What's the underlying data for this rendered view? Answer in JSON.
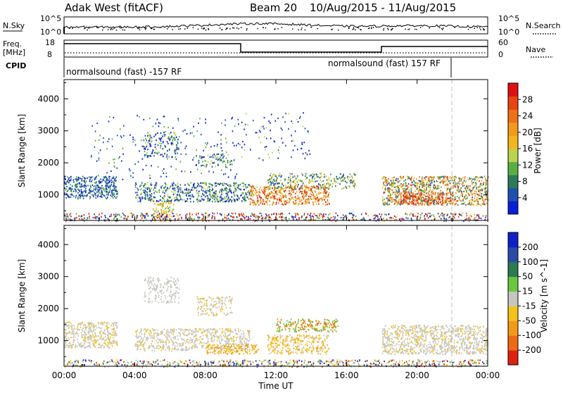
{
  "header": {
    "radar": "Adak West (fitACF)",
    "beam": "Beam 20",
    "dates": "10/Aug/2015 - 11/Aug/2015"
  },
  "top_panels": {
    "nsky_label": "N.Sky",
    "nsky_ticks": [
      "10^5",
      "10^0"
    ],
    "nsearch_label": "N.Search",
    "nsearch_ticks": [
      "10^5",
      "10^0"
    ],
    "freq_label_1": "Freq.",
    "freq_label_2": "[MHz]",
    "freq_ticks": [
      "18",
      "8"
    ],
    "nave_label": "Nave",
    "nave_ticks": [
      "60",
      "0"
    ],
    "cpid_label": "CPID",
    "cpid_modes": [
      "normalsound (fast) -157 RF",
      "normalsound (fast) 157 RF"
    ]
  },
  "chart_data": [
    {
      "type": "heatmap",
      "title": "",
      "ylabel": "Slant Range [km]",
      "xlabel": "",
      "x_ticks": [
        "00:00",
        "04:00",
        "08:00",
        "12:00",
        "16:00",
        "20:00",
        "00:00"
      ],
      "y_ticks": [
        1000,
        2000,
        3000,
        4000
      ],
      "ylim": [
        200,
        4600
      ],
      "colorbar": {
        "label": "Power [dB]",
        "ticks": [
          "4",
          "8",
          "12",
          "16",
          "20",
          "24",
          "28"
        ],
        "colors": [
          "#0a1fd8",
          "#1f4fb0",
          "#2d7a5a",
          "#58b045",
          "#bcd24a",
          "#f2b51d",
          "#f39a1c",
          "#f07016",
          "#e84512",
          "#e01010"
        ]
      }
    },
    {
      "type": "heatmap",
      "title": "",
      "ylabel": "Slant Range [km]",
      "xlabel": "Time UT",
      "x_ticks": [
        "00:00",
        "04:00",
        "08:00",
        "12:00",
        "16:00",
        "20:00",
        "00:00"
      ],
      "y_ticks": [
        1000,
        2000,
        3000,
        4000
      ],
      "ylim": [
        200,
        4600
      ],
      "colorbar": {
        "label": "Velocity [m s^-1]",
        "ticks": [
          "200",
          "100",
          "50",
          "15",
          "-15",
          "-50",
          "-100",
          "-200"
        ],
        "colors": [
          "#1020c8",
          "#2a4aa8",
          "#2a7a52",
          "#6cc640",
          "#c6c6c0",
          "#f5c21a",
          "#f29a18",
          "#ee6a14",
          "#e02010"
        ]
      }
    }
  ]
}
